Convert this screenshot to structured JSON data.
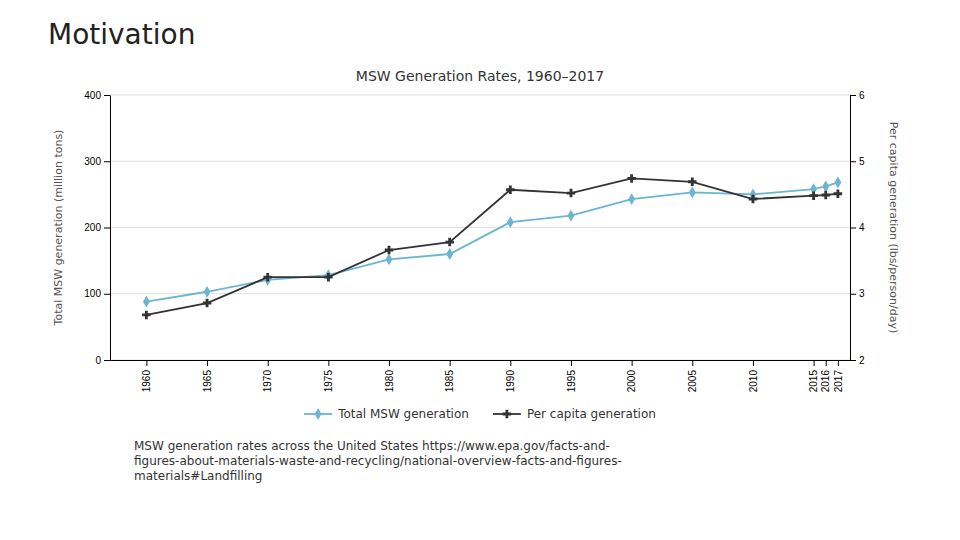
{
  "title": "Motivation",
  "caption": [
    "MSW generation rates across the United States https://www.epa.gov/facts-and-",
    "figures-about-materials-waste-and-recycling/national-overview-facts-and-figures-",
    "materials#Landfilling"
  ],
  "chart_data": {
    "type": "line",
    "title": "MSW Generation Rates, 1960–2017",
    "ylabel": "Total MSW generation (million tons)",
    "y2label": "Per capita generation (lbs/person/day)",
    "x": [
      1960,
      1965,
      1970,
      1975,
      1980,
      1985,
      1990,
      1995,
      2000,
      2005,
      2010,
      2015,
      2016,
      2017
    ],
    "xlim": [
      1957,
      2018
    ],
    "xticks": [
      1960,
      1965,
      1970,
      1975,
      1980,
      1985,
      1990,
      1995,
      2000,
      2005,
      2010,
      2015,
      2016,
      2017
    ],
    "ylim": [
      0,
      400
    ],
    "yticks": [
      0,
      100,
      200,
      300,
      400
    ],
    "y2lim": [
      2,
      6
    ],
    "y2ticks": [
      2,
      3,
      4,
      5,
      6
    ],
    "grid": true,
    "legend": "bottom",
    "series": [
      {
        "name": "Total MSW generation",
        "color": "#6ab4d4",
        "marker": "diamond",
        "values": [
          88,
          103,
          121,
          128,
          152,
          160,
          208,
          218,
          243,
          253,
          250,
          258,
          262,
          268
        ]
      },
      {
        "name": "Per capita generation",
        "color": "#333333",
        "marker": "plus",
        "axis": "y2",
        "values": [
          2.68,
          2.86,
          3.25,
          3.25,
          3.66,
          3.78,
          4.57,
          4.52,
          4.74,
          4.69,
          4.43,
          4.48,
          4.49,
          4.51
        ]
      }
    ]
  }
}
